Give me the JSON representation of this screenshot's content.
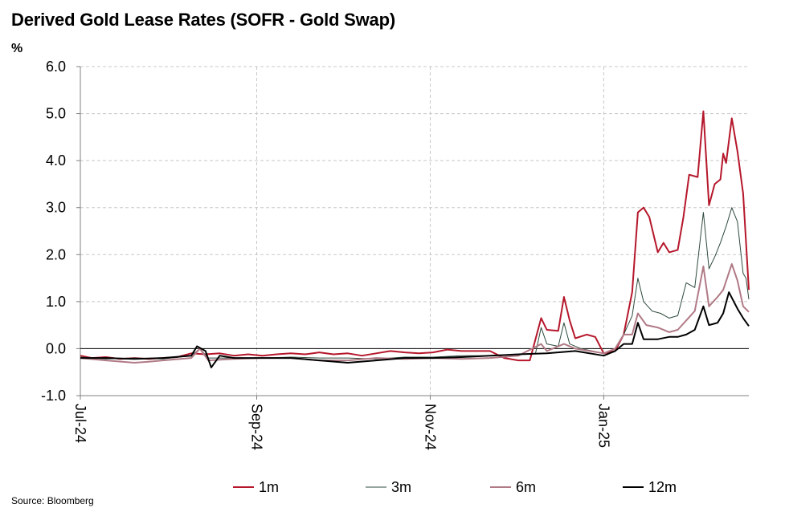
{
  "title": "Derived Gold Lease Rates (SOFR - Gold Swap)",
  "y_unit": "%",
  "source": "Source:  Bloomberg",
  "chart_data": {
    "type": "line",
    "title": "Derived Gold Lease Rates (SOFR - Gold Swap)",
    "xlabel": "",
    "ylabel": "%",
    "ylim": [
      -1.0,
      6.0
    ],
    "yticks": [
      "6.0",
      "5.0",
      "4.0",
      "3.0",
      "2.0",
      "1.0",
      "0.0",
      "-1.0"
    ],
    "x_range": [
      "2024-07-01",
      "2025-02-21"
    ],
    "xticks": [
      {
        "label": "Jul-24",
        "date": "2024-07-01"
      },
      {
        "label": "Sep-24",
        "date": "2024-09-01"
      },
      {
        "label": "Nov-24",
        "date": "2024-11-01"
      },
      {
        "label": "Jan-25",
        "date": "2025-01-01"
      }
    ],
    "grid": true,
    "legend_position": "bottom",
    "series": [
      {
        "name": "1m",
        "color": "#b5172b",
        "points": [
          [
            "2024-07-01",
            -0.15
          ],
          [
            "2024-07-05",
            -0.2
          ],
          [
            "2024-07-10",
            -0.18
          ],
          [
            "2024-07-15",
            -0.22
          ],
          [
            "2024-07-20",
            -0.2
          ],
          [
            "2024-07-25",
            -0.22
          ],
          [
            "2024-07-30",
            -0.2
          ],
          [
            "2024-08-04",
            -0.18
          ],
          [
            "2024-08-09",
            -0.1
          ],
          [
            "2024-08-14",
            -0.12
          ],
          [
            "2024-08-19",
            -0.1
          ],
          [
            "2024-08-24",
            -0.15
          ],
          [
            "2024-08-29",
            -0.12
          ],
          [
            "2024-09-03",
            -0.15
          ],
          [
            "2024-09-08",
            -0.12
          ],
          [
            "2024-09-13",
            -0.1
          ],
          [
            "2024-09-18",
            -0.12
          ],
          [
            "2024-09-23",
            -0.08
          ],
          [
            "2024-09-28",
            -0.12
          ],
          [
            "2024-10-03",
            -0.1
          ],
          [
            "2024-10-08",
            -0.15
          ],
          [
            "2024-10-13",
            -0.1
          ],
          [
            "2024-10-18",
            -0.05
          ],
          [
            "2024-10-23",
            -0.08
          ],
          [
            "2024-10-28",
            -0.1
          ],
          [
            "2024-11-02",
            -0.08
          ],
          [
            "2024-11-07",
            -0.02
          ],
          [
            "2024-11-12",
            -0.05
          ],
          [
            "2024-11-17",
            -0.05
          ],
          [
            "2024-11-22",
            -0.05
          ],
          [
            "2024-11-27",
            -0.2
          ],
          [
            "2024-12-02",
            -0.25
          ],
          [
            "2024-12-06",
            -0.25
          ],
          [
            "2024-12-10",
            0.65
          ],
          [
            "2024-12-12",
            0.4
          ],
          [
            "2024-12-16",
            0.38
          ],
          [
            "2024-12-18",
            1.1
          ],
          [
            "2024-12-20",
            0.6
          ],
          [
            "2024-12-22",
            0.22
          ],
          [
            "2024-12-26",
            0.3
          ],
          [
            "2024-12-29",
            0.25
          ],
          [
            "2025-01-01",
            -0.1
          ],
          [
            "2025-01-05",
            -0.05
          ],
          [
            "2025-01-08",
            0.3
          ],
          [
            "2025-01-11",
            1.2
          ],
          [
            "2025-01-13",
            2.9
          ],
          [
            "2025-01-15",
            3.0
          ],
          [
            "2025-01-17",
            2.8
          ],
          [
            "2025-01-20",
            2.05
          ],
          [
            "2025-01-22",
            2.25
          ],
          [
            "2025-01-24",
            2.05
          ],
          [
            "2025-01-27",
            2.1
          ],
          [
            "2025-01-29",
            2.8
          ],
          [
            "2025-01-31",
            3.7
          ],
          [
            "2025-02-03",
            3.65
          ],
          [
            "2025-02-05",
            5.05
          ],
          [
            "2025-02-07",
            3.05
          ],
          [
            "2025-02-09",
            3.5
          ],
          [
            "2025-02-11",
            3.6
          ],
          [
            "2025-02-12",
            4.15
          ],
          [
            "2025-02-13",
            3.95
          ],
          [
            "2025-02-15",
            4.9
          ],
          [
            "2025-02-17",
            4.2
          ],
          [
            "2025-02-19",
            3.3
          ],
          [
            "2025-02-21",
            1.25
          ]
        ]
      },
      {
        "name": "3m",
        "color": "#2e4a3c",
        "points": [
          [
            "2024-07-01",
            -0.18
          ],
          [
            "2024-07-10",
            -0.22
          ],
          [
            "2024-07-20",
            -0.2
          ],
          [
            "2024-07-30",
            -0.22
          ],
          [
            "2024-08-09",
            -0.15
          ],
          [
            "2024-08-12",
            0.0
          ],
          [
            "2024-08-15",
            -0.2
          ],
          [
            "2024-08-24",
            -0.2
          ],
          [
            "2024-09-03",
            -0.2
          ],
          [
            "2024-09-13",
            -0.18
          ],
          [
            "2024-09-23",
            -0.2
          ],
          [
            "2024-10-03",
            -0.2
          ],
          [
            "2024-10-13",
            -0.22
          ],
          [
            "2024-10-23",
            -0.18
          ],
          [
            "2024-11-02",
            -0.18
          ],
          [
            "2024-11-12",
            -0.15
          ],
          [
            "2024-11-22",
            -0.15
          ],
          [
            "2024-12-02",
            -0.12
          ],
          [
            "2024-12-08",
            -0.1
          ],
          [
            "2024-12-10",
            0.45
          ],
          [
            "2024-12-12",
            0.1
          ],
          [
            "2024-12-16",
            0.05
          ],
          [
            "2024-12-18",
            0.55
          ],
          [
            "2024-12-20",
            0.1
          ],
          [
            "2024-12-24",
            0.0
          ],
          [
            "2025-01-01",
            -0.1
          ],
          [
            "2025-01-05",
            0.0
          ],
          [
            "2025-01-08",
            0.3
          ],
          [
            "2025-01-11",
            0.7
          ],
          [
            "2025-01-13",
            1.5
          ],
          [
            "2025-01-15",
            1.0
          ],
          [
            "2025-01-18",
            0.8
          ],
          [
            "2025-01-21",
            0.75
          ],
          [
            "2025-01-24",
            0.65
          ],
          [
            "2025-01-27",
            0.7
          ],
          [
            "2025-01-30",
            1.4
          ],
          [
            "2025-02-02",
            1.3
          ],
          [
            "2025-02-05",
            2.9
          ],
          [
            "2025-02-07",
            1.7
          ],
          [
            "2025-02-09",
            1.95
          ],
          [
            "2025-02-11",
            2.25
          ],
          [
            "2025-02-13",
            2.6
          ],
          [
            "2025-02-15",
            3.0
          ],
          [
            "2025-02-17",
            2.7
          ],
          [
            "2025-02-19",
            1.6
          ],
          [
            "2025-02-20",
            1.5
          ],
          [
            "2025-02-21",
            1.05
          ]
        ]
      },
      {
        "name": "6m",
        "color": "#b07a86",
        "points": [
          [
            "2024-07-01",
            -0.2
          ],
          [
            "2024-07-10",
            -0.25
          ],
          [
            "2024-07-20",
            -0.3
          ],
          [
            "2024-07-25",
            -0.28
          ],
          [
            "2024-07-30",
            -0.25
          ],
          [
            "2024-08-09",
            -0.2
          ],
          [
            "2024-08-12",
            0.0
          ],
          [
            "2024-08-15",
            -0.25
          ],
          [
            "2024-08-24",
            -0.22
          ],
          [
            "2024-09-03",
            -0.2
          ],
          [
            "2024-09-13",
            -0.2
          ],
          [
            "2024-09-23",
            -0.25
          ],
          [
            "2024-10-03",
            -0.25
          ],
          [
            "2024-10-13",
            -0.2
          ],
          [
            "2024-10-23",
            -0.22
          ],
          [
            "2024-11-02",
            -0.2
          ],
          [
            "2024-11-12",
            -0.22
          ],
          [
            "2024-11-22",
            -0.2
          ],
          [
            "2024-12-02",
            -0.15
          ],
          [
            "2024-12-10",
            0.1
          ],
          [
            "2024-12-12",
            -0.05
          ],
          [
            "2024-12-18",
            0.1
          ],
          [
            "2024-12-22",
            0.0
          ],
          [
            "2025-01-01",
            -0.1
          ],
          [
            "2025-01-05",
            0.0
          ],
          [
            "2025-01-08",
            0.3
          ],
          [
            "2025-01-11",
            0.3
          ],
          [
            "2025-01-13",
            0.75
          ],
          [
            "2025-01-16",
            0.5
          ],
          [
            "2025-01-20",
            0.45
          ],
          [
            "2025-01-24",
            0.35
          ],
          [
            "2025-01-27",
            0.4
          ],
          [
            "2025-01-30",
            0.6
          ],
          [
            "2025-02-02",
            0.8
          ],
          [
            "2025-02-05",
            1.75
          ],
          [
            "2025-02-07",
            0.9
          ],
          [
            "2025-02-10",
            1.1
          ],
          [
            "2025-02-12",
            1.25
          ],
          [
            "2025-02-15",
            1.8
          ],
          [
            "2025-02-17",
            1.45
          ],
          [
            "2025-02-19",
            0.9
          ],
          [
            "2025-02-21",
            0.78
          ]
        ]
      },
      {
        "name": "12m",
        "color": "#000000",
        "points": [
          [
            "2024-07-01",
            -0.2
          ],
          [
            "2024-07-10",
            -0.2
          ],
          [
            "2024-07-20",
            -0.22
          ],
          [
            "2024-07-30",
            -0.2
          ],
          [
            "2024-08-09",
            -0.15
          ],
          [
            "2024-08-11",
            0.05
          ],
          [
            "2024-08-14",
            -0.05
          ],
          [
            "2024-08-16",
            -0.4
          ],
          [
            "2024-08-19",
            -0.15
          ],
          [
            "2024-08-24",
            -0.2
          ],
          [
            "2024-09-03",
            -0.2
          ],
          [
            "2024-09-13",
            -0.2
          ],
          [
            "2024-09-23",
            -0.25
          ],
          [
            "2024-10-03",
            -0.3
          ],
          [
            "2024-10-13",
            -0.25
          ],
          [
            "2024-10-23",
            -0.2
          ],
          [
            "2024-11-02",
            -0.2
          ],
          [
            "2024-11-12",
            -0.18
          ],
          [
            "2024-11-22",
            -0.15
          ],
          [
            "2024-12-02",
            -0.12
          ],
          [
            "2024-12-12",
            -0.1
          ],
          [
            "2024-12-22",
            -0.05
          ],
          [
            "2025-01-01",
            -0.15
          ],
          [
            "2025-01-05",
            -0.05
          ],
          [
            "2025-01-08",
            0.1
          ],
          [
            "2025-01-11",
            0.1
          ],
          [
            "2025-01-13",
            0.55
          ],
          [
            "2025-01-15",
            0.2
          ],
          [
            "2025-01-20",
            0.2
          ],
          [
            "2025-01-24",
            0.25
          ],
          [
            "2025-01-27",
            0.25
          ],
          [
            "2025-01-30",
            0.3
          ],
          [
            "2025-02-02",
            0.4
          ],
          [
            "2025-02-05",
            0.9
          ],
          [
            "2025-02-07",
            0.5
          ],
          [
            "2025-02-10",
            0.55
          ],
          [
            "2025-02-12",
            0.75
          ],
          [
            "2025-02-14",
            1.2
          ],
          [
            "2025-02-17",
            0.85
          ],
          [
            "2025-02-19",
            0.65
          ],
          [
            "2025-02-21",
            0.48
          ]
        ]
      }
    ]
  }
}
